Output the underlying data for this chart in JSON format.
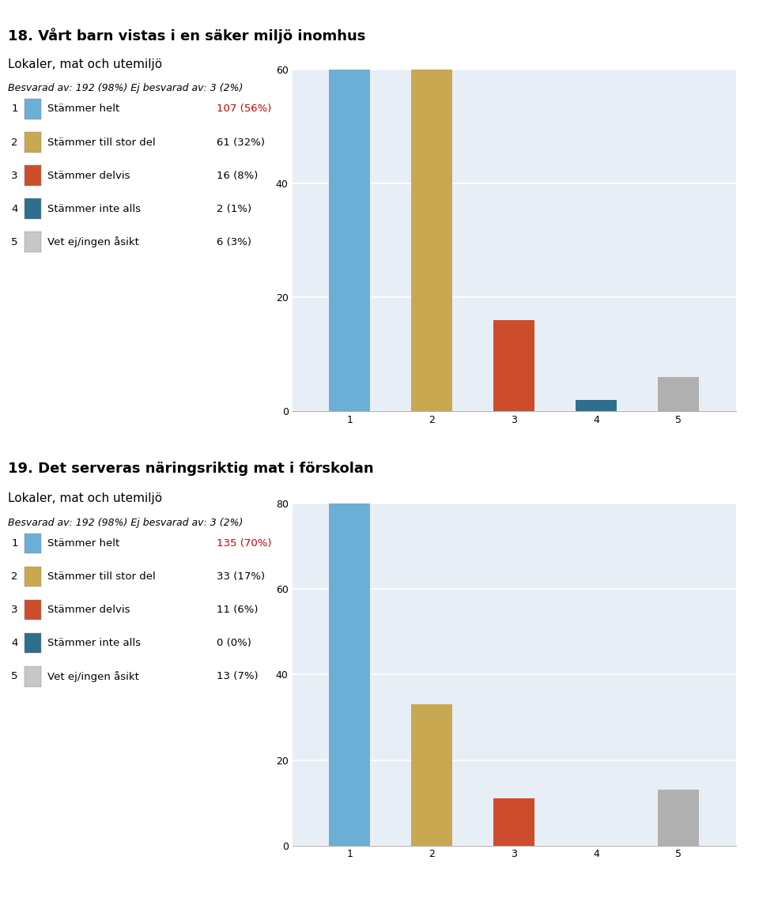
{
  "chart1": {
    "title": "18. Vårt barn vistas i en säker miljö inomhus",
    "subtitle": "Lokaler, mat och utemiljö",
    "survey_info": "Besvarad av: 192 (98%) Ej besvarad av: 3 (2%)",
    "categories": [
      1,
      2,
      3,
      4,
      5
    ],
    "values": [
      107,
      61,
      16,
      2,
      6
    ],
    "labels": [
      "Stämmer helt",
      "Stämmer till stor del",
      "Stämmer delvis",
      "Stämmer inte alls",
      "Vet ej/ingen åsikt"
    ],
    "counts_pct": [
      "107 (56%)",
      "61 (32%)",
      "16 (8%)",
      "2 (1%)",
      "6 (3%)"
    ],
    "highlight_idx": 0,
    "bar_colors": [
      "#6baed6",
      "#c8a951",
      "#cc4c2c",
      "#2e6e8e",
      "#b0b0b0"
    ],
    "ylim": [
      0,
      60
    ],
    "yticks": [
      0,
      20,
      40,
      60
    ],
    "bg_color": "#e8eef5"
  },
  "chart2": {
    "title": "19. Det serveras näringsriktig mat i förskolan",
    "subtitle": "Lokaler, mat och utemiljö",
    "survey_info": "Besvarad av: 192 (98%) Ej besvarad av: 3 (2%)",
    "categories": [
      1,
      2,
      3,
      4,
      5
    ],
    "values": [
      135,
      33,
      11,
      0,
      13
    ],
    "labels": [
      "Stämmer helt",
      "Stämmer till stor del",
      "Stämmer delvis",
      "Stämmer inte alls",
      "Vet ej/ingen åsikt"
    ],
    "counts_pct": [
      "135 (70%)",
      "33 (17%)",
      "11 (6%)",
      "0 (0%)",
      "13 (7%)"
    ],
    "highlight_idx": 0,
    "bar_colors": [
      "#6baed6",
      "#c8a951",
      "#cc4c2c",
      "#2e6e8e",
      "#b0b0b0"
    ],
    "ylim": [
      0,
      80
    ],
    "yticks": [
      0,
      20,
      40,
      60,
      80
    ],
    "bg_color": "#e8eef5"
  },
  "legend_color_boxes": [
    "#6baed6",
    "#c8a951",
    "#cc4c2c",
    "#2e6e8e",
    "#c8c8c8"
  ],
  "highlight_color": "#cc0000",
  "normal_count_color": "#000000",
  "title_fontsize": 13,
  "subtitle_fontsize": 11,
  "info_fontsize": 9,
  "legend_fontsize": 9.5,
  "tick_fontsize": 9,
  "page_bg": "#ffffff"
}
